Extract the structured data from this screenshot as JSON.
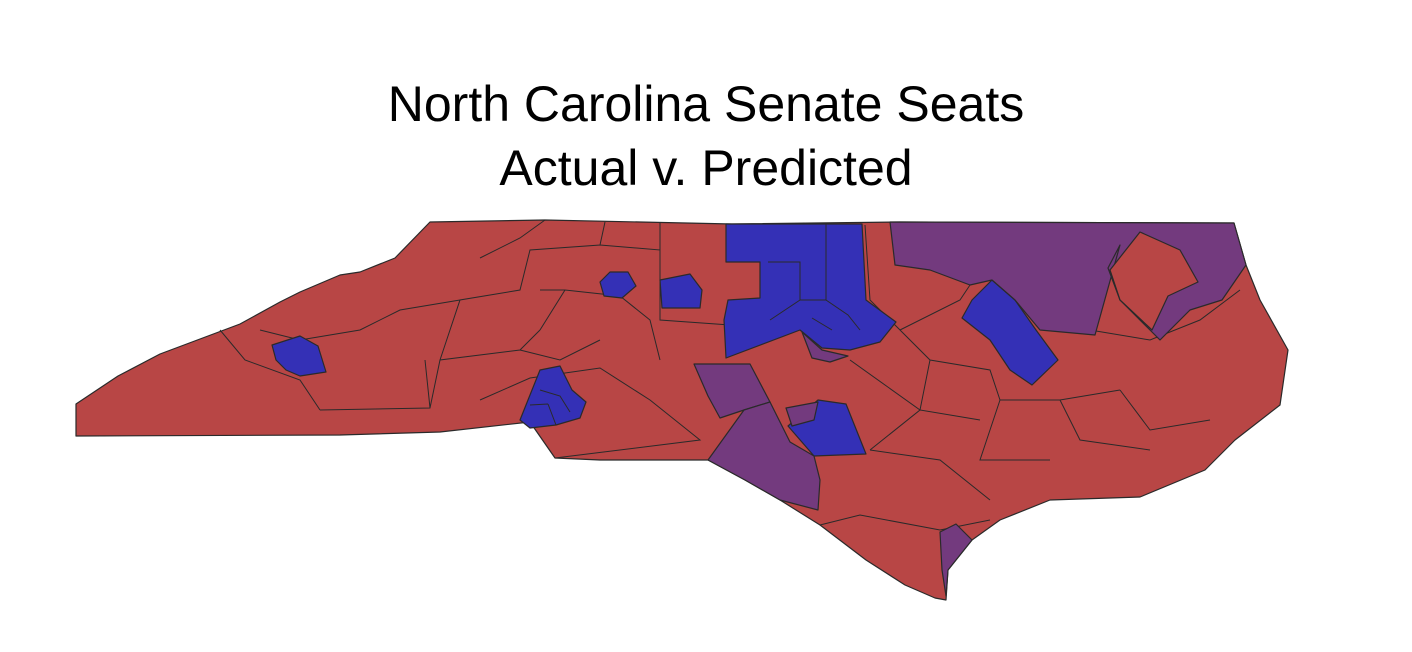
{
  "title": {
    "line1": "North Carolina Senate Seats",
    "line2": "Actual v. Predicted"
  },
  "colors": {
    "republican": "#b84645",
    "democratic": "#3430b6",
    "mismatch": "#733a7e",
    "outline": "#2a2a2a",
    "background": "#ffffff"
  }
}
